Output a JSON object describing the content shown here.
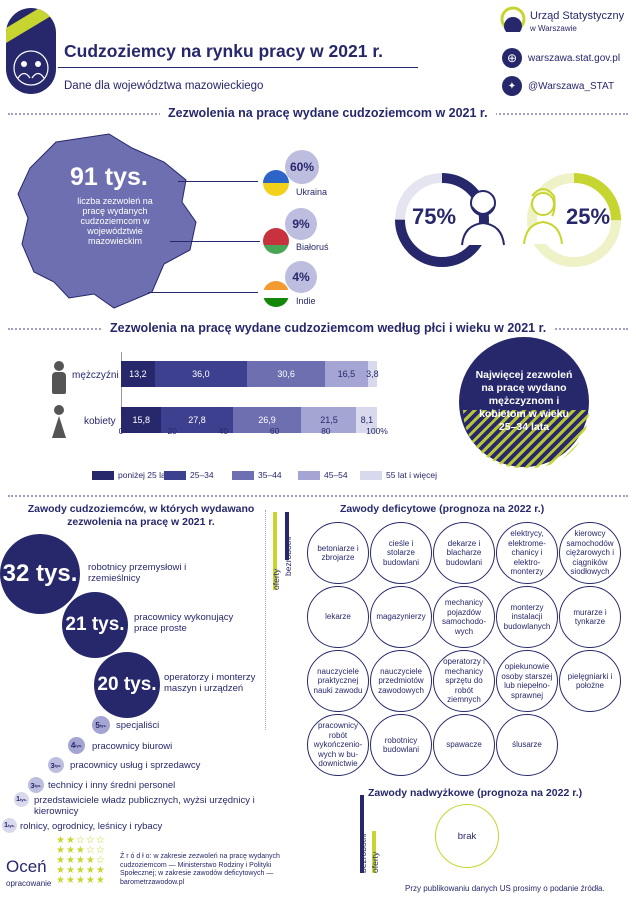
{
  "header": {
    "title": "Cudzoziemcy na rynku pracy w 2021 r.",
    "subtitle": "Dane dla województwa mazowieckiego",
    "org_name": "Urząd Statystyczny",
    "org_sub": "w Warszawie",
    "website": "warszawa.stat.gov.pl",
    "twitter": "@Warszawa_STAT"
  },
  "section1": {
    "title": "Zezwolenia na pracę wydane cudzoziemcom w 2021 r.",
    "big_number": "91 tys.",
    "description": "liczba zezwoleń na pracę wydanych cudzoziemcom w województwie mazowieckim",
    "countries": [
      {
        "pct": "60%",
        "name": "Ukraina"
      },
      {
        "pct": "9%",
        "name": "Białoruś"
      },
      {
        "pct": "4%",
        "name": "Indie"
      }
    ],
    "men_pct": "75%",
    "women_pct": "25%"
  },
  "section2": {
    "title": "Zezwolenia na pracę wydane cudzoziemcom według płci i wieku w 2021 r.",
    "callout": "Najwięcej zezwoleń na pracę wydano mężczyznom i kobietom w wieku 25–34 lata"
  },
  "chart_data": {
    "type": "bar",
    "orientation": "horizontal",
    "stacked": true,
    "categories": [
      "mężczyźni",
      "kobiety"
    ],
    "series": [
      {
        "name": "poniżej 25 lat",
        "values": [
          13.2,
          15.8
        ],
        "labels": [
          "13,2",
          "15,8"
        ],
        "color": "#27286b"
      },
      {
        "name": "25–34",
        "values": [
          36.0,
          27.8
        ],
        "labels": [
          "36,0",
          "27,8"
        ],
        "color": "#3d3f8f"
      },
      {
        "name": "35–44",
        "values": [
          30.6,
          26.9
        ],
        "labels": [
          "30,6",
          "26,9"
        ],
        "color": "#6d6fb0"
      },
      {
        "name": "45–54",
        "values": [
          16.5,
          21.5
        ],
        "labels": [
          "16,5",
          "21,5"
        ],
        "color": "#a4a5d2"
      },
      {
        "name": "55 lat i więcej",
        "values": [
          3.8,
          8.1
        ],
        "labels": [
          "3,8",
          "8,1"
        ],
        "color": "#d9d9ee"
      }
    ],
    "xticks": [
      "0",
      "20",
      "40",
      "60",
      "80",
      "100%"
    ],
    "xlim": [
      0,
      100
    ],
    "legend": "bottom"
  },
  "section3": {
    "title": "Zawody cudzoziemców, w których wydawano zezwolenia na pracę w 2021 r.",
    "occupations": [
      {
        "value": "32 tys.",
        "label": "robotnicy przemysłowi i rzemieślnicy"
      },
      {
        "value": "21 tys.",
        "label": "pracownicy wykonujący prace proste"
      },
      {
        "value": "20 tys.",
        "label": "operatorzy i monterzy maszyn i urządzeń"
      },
      {
        "value": "5",
        "unit": "tys.",
        "label": "specjaliści"
      },
      {
        "value": "4",
        "unit": "tys.",
        "label": "pracownicy biurowi"
      },
      {
        "value": "3",
        "unit": "tys.",
        "label": "pracownicy usług i sprzedawcy"
      },
      {
        "value": "3",
        "unit": "tys.",
        "label": "technicy i inny średni personel"
      },
      {
        "value": "1",
        "unit": "tys.",
        "label": "przedstawiciele władz publicznych, wyżsi urzędnicy i kierownicy"
      },
      {
        "value": "1",
        "unit": "tys.",
        "label": "rolnicy, ogrodnicy, leśnicy i rybacy"
      }
    ]
  },
  "section4": {
    "title": "Zawody deficytowe (prognoza na 2022 r.)",
    "axis_left": "oferty",
    "axis_right": "bezrobotni",
    "items": [
      "betoniarze i zbrojarze",
      "cieśle i stolarze budowlani",
      "dekarze i blacharze budowlani",
      "elektrycy, elektrome-chanicy i elektro-monterzy",
      "kierowcy samochodów ciężarowych i ciągników siodłowych",
      "lekarze",
      "magazynierzy",
      "mechanicy pojazdów samochodo-wych",
      "monterzy instalacji budowlanych",
      "murarze i tynkarze",
      "nauczyciele praktycznej nauki zawodu",
      "nauczyciele przedmiotów zawodowych",
      "operatorzy i mechanicy sprzętu do robót ziemnych",
      "opiekunowie osoby starszej lub niepełno-sprawnej",
      "pielęgniarki i położne",
      "pracownicy robót wykończenio-wych w bu-downictwie",
      "robotnicy budowlani",
      "spawacze",
      "ślusarze"
    ]
  },
  "section5": {
    "title": "Zawody nadwyżkowe (prognoza na 2022 r.)",
    "axis_left": "bezrobotni",
    "axis_right": "oferty",
    "item": "brak"
  },
  "footer": {
    "rate_title": "Oceń",
    "rate_sub": "opracowanie",
    "source": "Ź r ó d ł o: w zakresie zezwoleń na pracę wydanych cudzoziemcom — Ministerstwo Rodziny i Polityki Społecznej; w zakresie zawodów deficytowych — barometrzawodow.pl",
    "note": "Przy publikowaniu danych US prosimy o podanie źródła."
  }
}
